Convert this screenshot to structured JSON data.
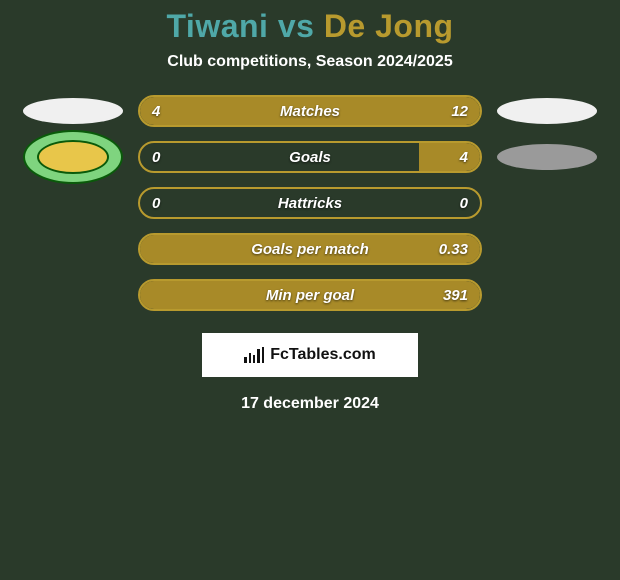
{
  "header": {
    "title_a": "Tiwani",
    "vs": " vs ",
    "title_b": "De Jong",
    "color_a": "#4fa8a8",
    "color_b": "#b89a2e",
    "subtitle": "Club competitions, Season 2024/2025"
  },
  "players": {
    "a": {
      "badge_type": "ellipse-white"
    },
    "b": {
      "badge_type": "ellipse-white"
    },
    "a_club": {
      "badge_type": "club"
    },
    "b_club": {
      "badge_type": "ellipse-gray"
    }
  },
  "colors": {
    "border": "#b89a2e",
    "fill_a": "#a88a28",
    "fill_b": "#a88a28",
    "background": "#2a3a2a"
  },
  "stats": [
    {
      "label": "Matches",
      "a": "4",
      "b": "12",
      "a_pct": 25,
      "b_pct": 75,
      "show_a": true,
      "show_b": true
    },
    {
      "label": "Goals",
      "a": "0",
      "b": "4",
      "a_pct": 0,
      "b_pct": 18,
      "show_a": true,
      "show_b": true
    },
    {
      "label": "Hattricks",
      "a": "0",
      "b": "0",
      "a_pct": 0,
      "b_pct": 0,
      "show_a": true,
      "show_b": true
    },
    {
      "label": "Goals per match",
      "a": "",
      "b": "0.33",
      "a_pct": 0,
      "b_pct": 100,
      "show_a": false,
      "show_b": true
    },
    {
      "label": "Min per goal",
      "a": "",
      "b": "391",
      "a_pct": 0,
      "b_pct": 100,
      "show_a": false,
      "show_b": true
    }
  ],
  "footer": {
    "brand": "FcTables.com",
    "date": "17 december 2024"
  }
}
